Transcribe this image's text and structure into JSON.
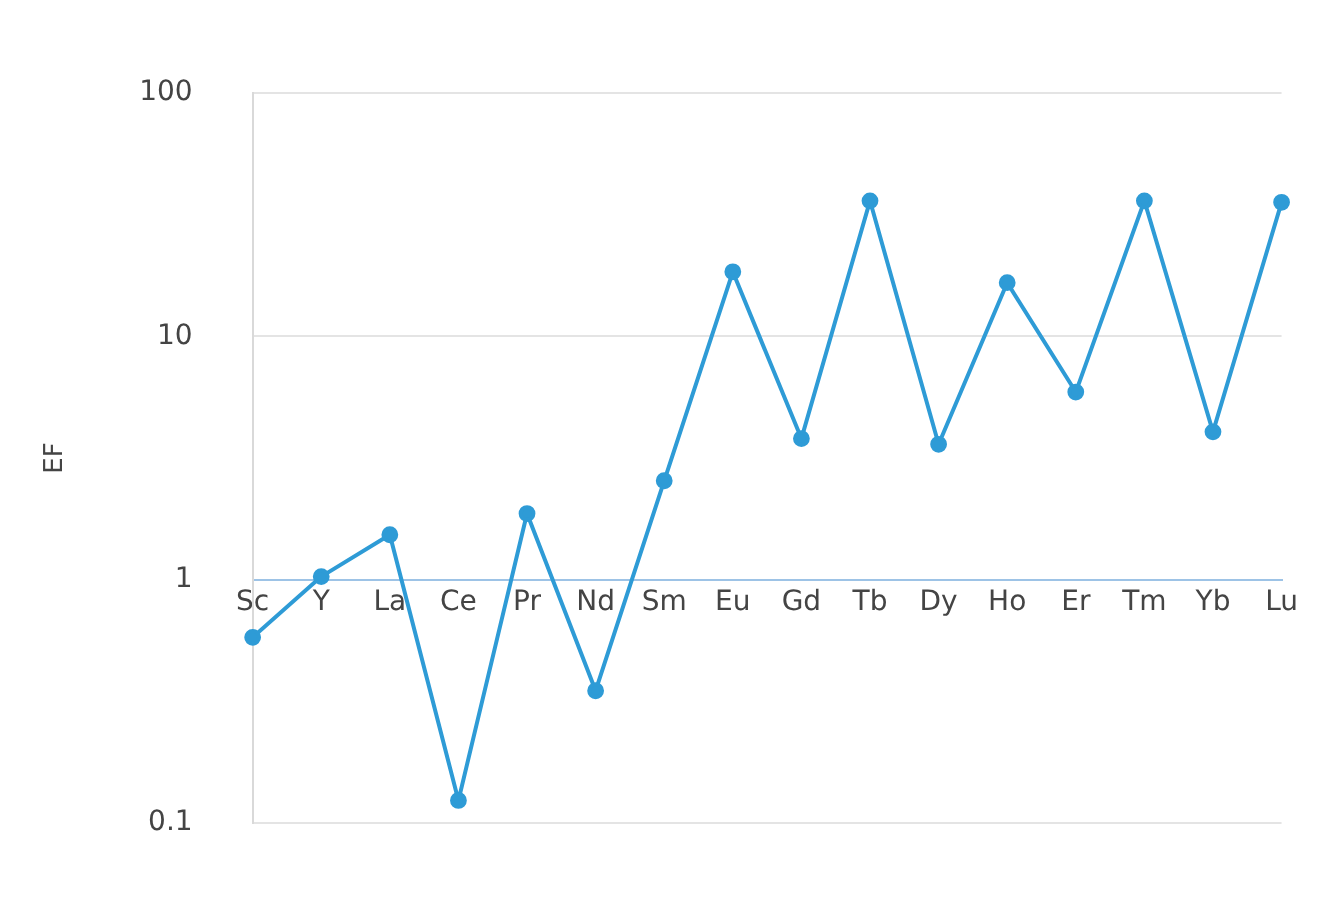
{
  "chart_data": {
    "type": "line",
    "ylabel": "EF",
    "categories": [
      "Sc",
      "Y",
      "La",
      "Ce",
      "Pr",
      "Nd",
      "Sm",
      "Eu",
      "Gd",
      "Tb",
      "Dy",
      "Ho",
      "Er",
      "Tm",
      "Yb",
      "Lu"
    ],
    "series": [
      {
        "color": "#2e9bd6",
        "values": [
          0.58,
          1.03,
          1.53,
          0.124,
          1.87,
          0.35,
          2.55,
          18.4,
          3.8,
          36,
          3.6,
          16.6,
          5.9,
          36,
          4.05,
          35.5
        ]
      }
    ],
    "log": "y",
    "ylim": [
      0.1,
      100
    ],
    "yticks": [
      0.1,
      1,
      10,
      100
    ],
    "grid": "y",
    "legend": false,
    "marker": "circle",
    "line_style": "solid"
  }
}
